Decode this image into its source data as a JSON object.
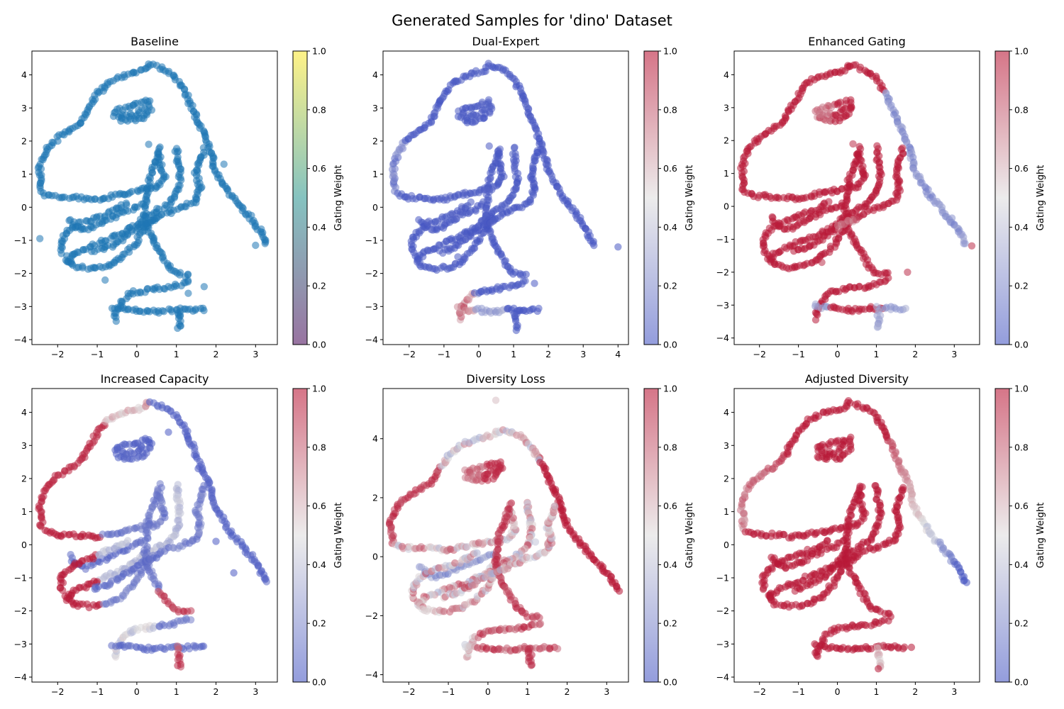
{
  "figure_title": "Generated Samples for 'dino' Dataset",
  "colors": {
    "baseline_point": "#1f77b4",
    "cmap_low": "#3b4cc0",
    "cmap_mid": "#dddcdc",
    "cmap_high": "#b40426",
    "viridis_low": "#440154",
    "viridis_mid": "#21918c",
    "viridis_high": "#fde725"
  },
  "chart_data": [
    {
      "type": "scatter",
      "title": "Baseline",
      "colormap": "viridis",
      "uniform_color": true,
      "colorbar_label": "Gating Weight",
      "colorbar_range": [
        0.0,
        1.0
      ],
      "colorbar_ticks": [
        "0.0",
        "0.2",
        "0.4",
        "0.6",
        "0.8",
        "1.0"
      ],
      "xlim": [
        -2.65,
        3.55
      ],
      "ylim": [
        -4.15,
        4.72
      ],
      "xticks": [
        -2,
        -1,
        0,
        1,
        2,
        3
      ],
      "yticks": [
        -4,
        -3,
        -2,
        -1,
        0,
        1,
        2,
        3,
        4
      ],
      "seed": 11,
      "gating_mode": "uniform",
      "outliers": [
        [
          -2.45,
          -0.95
        ],
        [
          3.0,
          -1.15
        ],
        [
          1.7,
          -2.4
        ],
        [
          1.3,
          -2.6
        ],
        [
          0.3,
          1.9
        ],
        [
          2.2,
          1.3
        ],
        [
          -0.8,
          -2.2
        ]
      ]
    },
    {
      "type": "scatter",
      "title": "Dual-Expert",
      "colormap": "coolwarm",
      "colorbar_label": "Gating Weight",
      "colorbar_range": [
        0.0,
        1.0
      ],
      "colorbar_ticks": [
        "0.0",
        "0.2",
        "0.4",
        "0.6",
        "0.8",
        "1.0"
      ],
      "xlim": [
        -2.75,
        4.3
      ],
      "ylim": [
        -4.15,
        4.72
      ],
      "xticks": [
        -2,
        -1,
        0,
        1,
        2,
        3,
        4
      ],
      "yticks": [
        -4,
        -3,
        -2,
        -1,
        0,
        1,
        2,
        3,
        4
      ],
      "seed": 23,
      "gating_mode": "dual",
      "outliers": [
        [
          4.0,
          -1.2
        ],
        [
          0.3,
          1.85
        ],
        [
          -0.6,
          -1.5
        ],
        [
          1.6,
          -2.3
        ]
      ]
    },
    {
      "type": "scatter",
      "title": "Enhanced Gating",
      "colormap": "coolwarm",
      "colorbar_label": "Gating Weight",
      "colorbar_range": [
        0.0,
        1.0
      ],
      "colorbar_ticks": [
        "0.0",
        "0.2",
        "0.4",
        "0.6",
        "0.8",
        "1.0"
      ],
      "xlim": [
        -2.65,
        3.65
      ],
      "ylim": [
        -4.2,
        4.72
      ],
      "xticks": [
        -2,
        -1,
        0,
        1,
        2,
        3
      ],
      "yticks": [
        -4,
        -3,
        -2,
        -1,
        0,
        1,
        2,
        3,
        4
      ],
      "seed": 37,
      "gating_mode": "enhanced",
      "outliers": [
        [
          3.45,
          -1.2
        ],
        [
          1.8,
          -2.0
        ],
        [
          -0.4,
          -1.7
        ],
        [
          0.4,
          1.9
        ]
      ]
    },
    {
      "type": "scatter",
      "title": "Increased Capacity",
      "colormap": "coolwarm",
      "colorbar_label": "Gating Weight",
      "colorbar_range": [
        0.0,
        1.0
      ],
      "colorbar_ticks": [
        "0.0",
        "0.2",
        "0.4",
        "0.6",
        "0.8",
        "1.0"
      ],
      "xlim": [
        -2.65,
        3.55
      ],
      "ylim": [
        -4.15,
        4.72
      ],
      "xticks": [
        -2,
        -1,
        0,
        1,
        2,
        3
      ],
      "yticks": [
        -4,
        -3,
        -2,
        -1,
        0,
        1,
        2,
        3,
        4
      ],
      "seed": 41,
      "gating_mode": "capacity",
      "outliers": [
        [
          2.45,
          -0.85
        ],
        [
          0.8,
          3.4
        ],
        [
          1.55,
          2.3
        ],
        [
          2.0,
          0.1
        ]
      ]
    },
    {
      "type": "scatter",
      "title": "Diversity Loss",
      "colormap": "coolwarm",
      "colorbar_label": "Gating Weight",
      "colorbar_range": [
        0.0,
        1.0
      ],
      "colorbar_ticks": [
        "0.0",
        "0.2",
        "0.4",
        "0.6",
        "0.8",
        "1.0"
      ],
      "xlim": [
        -2.65,
        3.55
      ],
      "ylim": [
        -4.25,
        5.7
      ],
      "xticks": [
        -2,
        -1,
        0,
        1,
        2,
        3
      ],
      "yticks": [
        -4,
        -2,
        0,
        2,
        4
      ],
      "seed": 53,
      "gating_mode": "diversity",
      "outliers": [
        [
          0.2,
          5.3
        ],
        [
          1.2,
          0.5
        ],
        [
          1.0,
          1.8
        ]
      ]
    },
    {
      "type": "scatter",
      "title": "Adjusted Diversity",
      "colormap": "coolwarm",
      "colorbar_label": "Gating Weight",
      "colorbar_range": [
        0.0,
        1.0
      ],
      "colorbar_ticks": [
        "0.0",
        "0.2",
        "0.4",
        "0.6",
        "0.8",
        "1.0"
      ],
      "xlim": [
        -2.65,
        3.65
      ],
      "ylim": [
        -4.15,
        4.72
      ],
      "xticks": [
        -2,
        -1,
        0,
        1,
        2,
        3
      ],
      "yticks": [
        -4,
        -3,
        -2,
        -1,
        0,
        1,
        2,
        3,
        4
      ],
      "seed": 67,
      "gating_mode": "adjusted",
      "outliers": [
        [
          1.9,
          -3.1
        ],
        [
          1.05,
          -3.75
        ]
      ]
    }
  ]
}
